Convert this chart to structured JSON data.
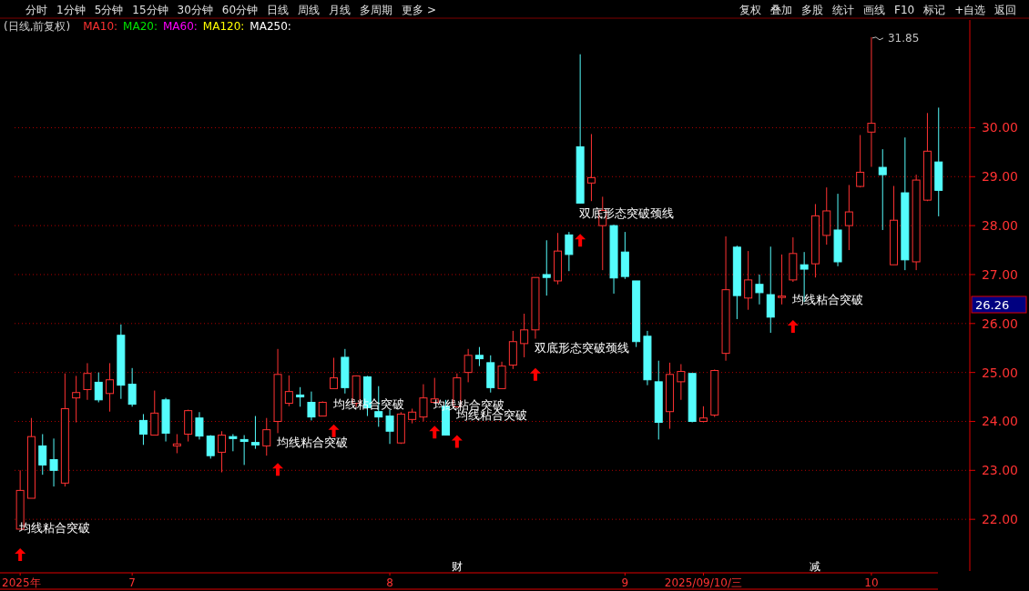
{
  "chart_data": {
    "type": "candlestick",
    "title": "(日线,前复权)",
    "categories": [
      "2025年",
      null,
      null,
      null,
      null,
      null,
      null,
      null,
      null,
      null,
      "7",
      null,
      null,
      null,
      null,
      null,
      null,
      null,
      null,
      null,
      null,
      null,
      null,
      null,
      null,
      null,
      null,
      null,
      null,
      null,
      null,
      null,
      null,
      "8",
      null,
      null,
      null,
      null,
      null,
      null,
      null,
      null,
      null,
      null,
      null,
      null,
      null,
      null,
      null,
      null,
      null,
      null,
      null,
      null,
      "9",
      null,
      null,
      null,
      null,
      null,
      null,
      "2025/09/10/三",
      null,
      null,
      null,
      null,
      null,
      null,
      null,
      null,
      null,
      null,
      null,
      null,
      null,
      null,
      "10",
      null,
      null,
      null,
      null,
      null,
      null
    ],
    "ohlc": [
      [
        21.8,
        23.0,
        21.8,
        22.59
      ],
      [
        22.43,
        24.07,
        22.43,
        23.69
      ],
      [
        23.5,
        23.74,
        22.91,
        23.11
      ],
      [
        23.22,
        23.65,
        22.67,
        23.0
      ],
      [
        22.74,
        24.98,
        22.67,
        24.26
      ],
      [
        24.48,
        24.93,
        23.98,
        24.59
      ],
      [
        24.65,
        25.19,
        24.44,
        24.98
      ],
      [
        24.8,
        25.0,
        24.39,
        24.44
      ],
      [
        24.57,
        25.19,
        24.2,
        24.85
      ],
      [
        25.76,
        25.98,
        24.46,
        24.74
      ],
      [
        24.76,
        25.09,
        24.3,
        24.35
      ],
      [
        24.02,
        24.15,
        23.52,
        23.74
      ],
      [
        23.72,
        24.63,
        23.72,
        24.17
      ],
      [
        24.44,
        24.48,
        23.59,
        23.76
      ],
      [
        23.5,
        23.74,
        23.35,
        23.54
      ],
      [
        23.74,
        24.24,
        23.59,
        24.22
      ],
      [
        24.07,
        24.19,
        23.63,
        23.7
      ],
      [
        23.7,
        23.72,
        23.24,
        23.3
      ],
      [
        23.37,
        23.8,
        22.96,
        23.72
      ],
      [
        23.69,
        23.74,
        23.39,
        23.65
      ],
      [
        23.63,
        23.72,
        23.11,
        23.59
      ],
      [
        23.57,
        24.11,
        23.44,
        23.52
      ],
      [
        23.5,
        24.07,
        23.3,
        23.83
      ],
      [
        24.0,
        25.48,
        23.76,
        24.96
      ],
      [
        24.37,
        24.94,
        24.31,
        24.61
      ],
      [
        24.54,
        24.7,
        24.3,
        24.5
      ],
      [
        24.39,
        24.61,
        24.02,
        24.09
      ],
      [
        24.11,
        24.41,
        24.11,
        24.39
      ],
      [
        24.67,
        25.3,
        24.67,
        24.89
      ],
      [
        25.31,
        25.48,
        24.57,
        24.69
      ],
      [
        24.37,
        24.94,
        24.3,
        24.93
      ],
      [
        24.91,
        24.93,
        24.11,
        24.28
      ],
      [
        24.2,
        24.72,
        23.89,
        24.09
      ],
      [
        24.11,
        24.24,
        23.54,
        23.8
      ],
      [
        23.56,
        24.19,
        23.54,
        24.15
      ],
      [
        24.04,
        24.26,
        23.96,
        24.19
      ],
      [
        24.09,
        24.76,
        24.0,
        24.48
      ],
      [
        24.39,
        24.89,
        24.37,
        24.46
      ],
      [
        24.31,
        24.44,
        23.72,
        23.72
      ],
      [
        24.3,
        24.98,
        24.3,
        24.89
      ],
      [
        25.0,
        25.48,
        24.8,
        25.35
      ],
      [
        25.35,
        25.52,
        25.13,
        25.28
      ],
      [
        25.2,
        25.35,
        24.59,
        24.69
      ],
      [
        24.67,
        25.22,
        24.67,
        25.13
      ],
      [
        25.15,
        25.85,
        25.07,
        25.63
      ],
      [
        25.59,
        26.2,
        25.31,
        25.87
      ],
      [
        25.87,
        26.94,
        25.69,
        26.94
      ],
      [
        27.0,
        27.7,
        26.57,
        26.94
      ],
      [
        26.87,
        27.85,
        26.8,
        27.48
      ],
      [
        27.81,
        27.87,
        27.07,
        27.41
      ],
      [
        29.61,
        31.5,
        28.46,
        28.46
      ],
      [
        28.87,
        29.87,
        28.5,
        28.98
      ],
      [
        28.0,
        28.59,
        27.09,
        28.31
      ],
      [
        28.0,
        28.02,
        26.61,
        26.93
      ],
      [
        27.46,
        27.87,
        26.91,
        26.96
      ],
      [
        26.87,
        26.87,
        25.52,
        25.63
      ],
      [
        25.74,
        25.85,
        24.74,
        24.85
      ],
      [
        24.81,
        25.24,
        23.63,
        23.98
      ],
      [
        24.2,
        25.2,
        23.85,
        24.96
      ],
      [
        24.81,
        25.17,
        24.44,
        25.02
      ],
      [
        24.98,
        24.98,
        23.98,
        24.0
      ],
      [
        24.0,
        24.31,
        23.98,
        24.07
      ],
      [
        24.13,
        25.06,
        24.09,
        25.04
      ],
      [
        25.39,
        27.78,
        25.24,
        26.69
      ],
      [
        27.56,
        27.59,
        26.09,
        26.57
      ],
      [
        26.52,
        27.48,
        26.28,
        26.89
      ],
      [
        26.8,
        27.0,
        26.39,
        26.63
      ],
      [
        26.59,
        27.57,
        25.81,
        26.13
      ],
      [
        26.54,
        27.41,
        26.39,
        26.56
      ],
      [
        26.89,
        27.76,
        26.85,
        27.43
      ],
      [
        27.2,
        27.46,
        26.44,
        27.11
      ],
      [
        27.22,
        28.44,
        26.94,
        28.2
      ],
      [
        27.8,
        28.78,
        27.61,
        28.3
      ],
      [
        27.91,
        28.65,
        27.17,
        27.26
      ],
      [
        28.0,
        28.83,
        27.5,
        28.28
      ],
      [
        28.8,
        29.85,
        28.78,
        29.09
      ],
      [
        29.91,
        31.85,
        29.2,
        30.09
      ],
      [
        29.19,
        29.56,
        27.91,
        29.04
      ],
      [
        27.2,
        28.81,
        27.2,
        28.11
      ],
      [
        28.67,
        29.8,
        27.09,
        27.3
      ],
      [
        27.26,
        29.04,
        27.09,
        28.93
      ],
      [
        28.52,
        30.3,
        28.5,
        29.52
      ],
      [
        29.3,
        30.41,
        28.19,
        28.72
      ]
    ],
    "colors": [
      "#ff3232",
      "#ff3232",
      "#54fcfc",
      "#54fcfc",
      "#ff3232",
      "#ff3232",
      "#ff3232",
      "#54fcfc",
      "#ff3232",
      "#54fcfc",
      "#54fcfc",
      "#54fcfc",
      "#ff3232",
      "#54fcfc",
      "#ff3232",
      "#ff3232",
      "#54fcfc",
      "#54fcfc",
      "#ff3232",
      "#54fcfc",
      "#54fcfc",
      "#54fcfc",
      "#ff3232",
      "#ff3232",
      "#ff3232",
      "#54fcfc",
      "#54fcfc",
      "#ff3232",
      "#ff3232",
      "#54fcfc",
      "#ff3232",
      "#54fcfc",
      "#54fcfc",
      "#54fcfc",
      "#ff3232",
      "#ff3232",
      "#ff3232",
      "#ff3232",
      "#54fcfc",
      "#ff3232",
      "#ff3232",
      "#54fcfc",
      "#54fcfc",
      "#ff3232",
      "#ff3232",
      "#ff3232",
      "#ff3232",
      "#54fcfc",
      "#ff3232",
      "#54fcfc",
      "#54fcfc",
      "#ff3232",
      "#ff3232",
      "#54fcfc",
      "#54fcfc",
      "#54fcfc",
      "#54fcfc",
      "#54fcfc",
      "#ff3232",
      "#ff3232",
      "#54fcfc",
      "#ff3232",
      "#ff3232",
      "#ff3232",
      "#54fcfc",
      "#ff3232",
      "#54fcfc",
      "#54fcfc",
      "#ff3232",
      "#ff3232",
      "#54fcfc",
      "#ff3232",
      "#ff3232",
      "#54fcfc",
      "#ff3232",
      "#ff3232",
      "#ff3232",
      "#54fcfc",
      "#ff3232",
      "#54fcfc",
      "#ff3232",
      "#ff3232",
      "#54fcfc"
    ],
    "series": [
      {
        "type": "scatter",
        "color": "#ff0000",
        "marker": "triangle",
        "values": [
          21.28,
          null,
          null,
          null,
          null,
          null,
          null,
          null,
          null,
          null,
          null,
          null,
          null,
          null,
          null,
          null,
          null,
          null,
          null,
          null,
          null,
          null,
          null,
          23.02,
          null,
          null,
          null,
          null,
          23.81,
          null,
          null,
          null,
          null,
          null,
          null,
          null,
          null,
          23.78,
          null,
          23.59,
          null,
          null,
          null,
          null,
          null,
          null,
          24.96,
          null,
          null,
          null,
          27.7,
          null,
          null,
          null,
          null,
          null,
          null,
          null,
          null,
          null,
          null,
          null,
          null,
          null,
          null,
          null,
          null,
          null,
          null,
          25.94,
          null,
          null,
          null,
          null,
          null,
          null,
          null,
          null,
          null,
          null,
          null,
          null,
          null
        ],
        "value_labels": [
          "均线粘合突破",
          null,
          null,
          null,
          null,
          null,
          null,
          null,
          null,
          null,
          null,
          null,
          null,
          null,
          null,
          null,
          null,
          null,
          null,
          null,
          null,
          null,
          null,
          "均线粘合突破",
          null,
          null,
          null,
          null,
          "均线粘合突破",
          null,
          null,
          null,
          null,
          null,
          null,
          null,
          null,
          "均线粘合突破",
          null,
          "均线粘合突破",
          null,
          null,
          null,
          null,
          null,
          null,
          "双底形态突破颈线",
          null,
          null,
          null,
          "双底形态突破颈线",
          null,
          null,
          null,
          null,
          null,
          null,
          null,
          null,
          null,
          null,
          null,
          null,
          null,
          null,
          null,
          null,
          null,
          null,
          "均线粘合突破",
          null,
          null,
          null,
          null,
          null,
          null,
          null,
          null,
          null,
          null,
          null,
          null,
          null
        ]
      }
    ],
    "ylim": [
      21.0,
      32.2
    ],
    "yticks": [
      {
        "value": 22,
        "label": "22.00"
      },
      {
        "value": 23,
        "label": "23.00"
      },
      {
        "value": 24,
        "label": "24.00"
      },
      {
        "value": 25,
        "label": "25.00"
      },
      {
        "value": 26,
        "label": "26.00"
      },
      {
        "value": 27,
        "label": "27.00"
      },
      {
        "value": 28,
        "label": "28.00"
      },
      {
        "value": 29,
        "label": "29.00"
      },
      {
        "value": 30,
        "label": "30.00"
      }
    ],
    "grid": "y",
    "annotations": [
      "分时",
      "1分钟",
      "5分钟",
      "15分钟",
      "30分钟",
      "60分钟",
      "日线",
      "周线",
      "月线",
      "多周期",
      "更多 >",
      "复权",
      "叠加",
      "多股",
      "统计",
      "画线",
      "F10",
      "标记",
      "+自选",
      "返回",
      "MA10:",
      "MA20:",
      "MA60:",
      "MA120:",
      "MA250:",
      "财",
      "减",
      "31.85",
      "26.26"
    ]
  }
}
